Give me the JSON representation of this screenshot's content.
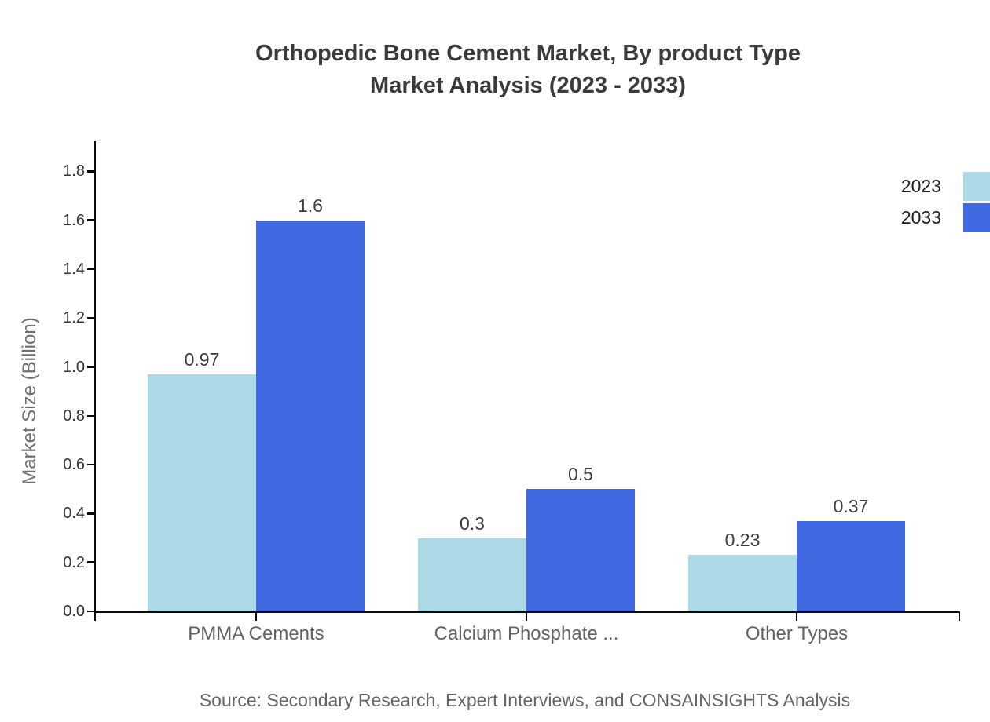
{
  "title": {
    "line1": "Orthopedic Bone Cement Market, By product Type",
    "line2": "Market Analysis (2023 - 2033)"
  },
  "y_axis": {
    "label": "Market Size (Billion)",
    "tick_labels": [
      "0.0",
      "0.2",
      "0.4",
      "0.6",
      "0.8",
      "1.0",
      "1.2",
      "1.4",
      "1.6",
      "1.8"
    ],
    "tick_values": [
      0.0,
      0.2,
      0.4,
      0.6,
      0.8,
      1.0,
      1.2,
      1.4,
      1.6,
      1.8
    ]
  },
  "legend": {
    "position": "upper-right",
    "items": [
      {
        "label": "2023",
        "color": "#ADD8E6"
      },
      {
        "label": "2033",
        "color": "#4169E1"
      }
    ]
  },
  "source": "Source: Secondary Research, Expert Interviews, and CONSAINSIGHTS Analysis",
  "chart_data": {
    "type": "bar",
    "title": "Orthopedic Bone Cement Market, By product Type Market Analysis (2023 - 2033)",
    "xlabel": "",
    "ylabel": "Market Size (Billion)",
    "categories": [
      "PMMA Cements",
      "Calcium Phosphate ...",
      "Other Types"
    ],
    "series": [
      {
        "name": "2023",
        "color": "#ADD8E6",
        "values": [
          0.97,
          0.3,
          0.23
        ],
        "value_labels": [
          "0.97",
          "0.3",
          "0.23"
        ]
      },
      {
        "name": "2033",
        "color": "#4169E1",
        "values": [
          1.6,
          0.5,
          0.37
        ],
        "value_labels": [
          "1.6",
          "0.5",
          "0.37"
        ]
      }
    ],
    "ylim": [
      0,
      1.925
    ],
    "grid": false,
    "legend_position": "upper right, swatches clipped at right edge"
  }
}
